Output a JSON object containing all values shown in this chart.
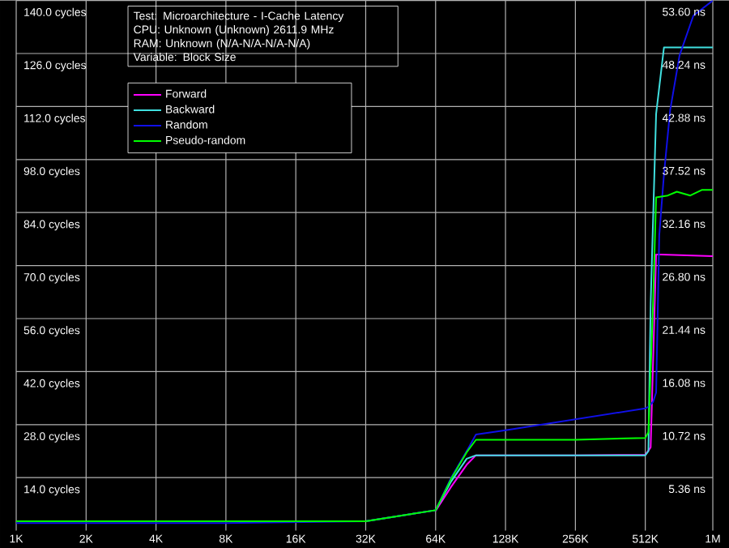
{
  "chart_data": {
    "type": "line",
    "annotations": [
      "Test: Microarchitecture - I-Cache Latency",
      "CPU: Unknown (Unknown) 2611.9 MHz",
      "RAM: Unknown (N/A-N/A-N/A-N/A)",
      "Variable: Block Size"
    ],
    "series": [
      {
        "name": "Forward",
        "color": "#ff00ff",
        "x": [
          64000,
          74700,
          87100,
          95500,
          128000,
          256000,
          512000,
          540000,
          570000,
          600000,
          1000000
        ],
        "values": [
          5.2,
          11.6,
          17.4,
          19.9,
          19.9,
          19.9,
          20,
          22,
          72.9,
          72.9,
          72.5
        ]
      },
      {
        "name": "Backward",
        "color": "#40e0e0",
        "x": [
          1000,
          32000,
          64000,
          74700,
          87100,
          95500,
          128000,
          256000,
          512000,
          528000,
          540000,
          570000,
          616000,
          1000000
        ],
        "values": [
          2.5,
          2.5,
          5.4,
          13,
          19,
          19.9,
          19.9,
          19.9,
          19.9,
          21,
          60,
          110,
          127.6,
          127.6
        ]
      },
      {
        "name": "Random",
        "color": "#1010e8",
        "x": [
          1000,
          8000,
          32000,
          64000,
          74700,
          87100,
          95500,
          128000,
          256000,
          512000,
          528000,
          553000,
          570000,
          588000,
          616000,
          655000,
          719000,
          825000,
          1000000
        ],
        "values": [
          2,
          2,
          2.5,
          5.4,
          14,
          21,
          25.4,
          26.5,
          29.4,
          32.3,
          32.7,
          34,
          36.5,
          78,
          94,
          111,
          125.5,
          136,
          140
        ]
      },
      {
        "name": "Pseudo-random",
        "color": "#00ff00",
        "x": [
          1000,
          8000,
          32000,
          64000,
          74700,
          87100,
          95500,
          128000,
          256000,
          512000,
          528000,
          553000,
          570000,
          640000,
          700000,
          800000,
          900000,
          1000000
        ],
        "values": [
          2.5,
          2.5,
          2.5,
          5.4,
          13.7,
          20.7,
          24,
          24,
          24,
          24.5,
          26,
          60,
          88,
          88.5,
          89.5,
          88.5,
          90,
          90
        ]
      }
    ],
    "log": "x",
    "xlim": [
      1000,
      1000000
    ],
    "xticks": [
      {
        "value": 1000,
        "label": "1K"
      },
      {
        "value": 2000,
        "label": "2K"
      },
      {
        "value": 4000,
        "label": "4K"
      },
      {
        "value": 8000,
        "label": "8K"
      },
      {
        "value": 16000,
        "label": "16K"
      },
      {
        "value": 32000,
        "label": "32K"
      },
      {
        "value": 64000,
        "label": "64K"
      },
      {
        "value": 128000,
        "label": "128K"
      },
      {
        "value": 256000,
        "label": "256K"
      },
      {
        "value": 512000,
        "label": "512K"
      },
      {
        "value": 1000000,
        "label": "1M"
      }
    ],
    "ylim": [
      0,
      140
    ],
    "yticks": [
      {
        "value": 14,
        "label": "14.0 cycles"
      },
      {
        "value": 28,
        "label": "28.0 cycles"
      },
      {
        "value": 42,
        "label": "42.0 cycles"
      },
      {
        "value": 56,
        "label": "56.0 cycles"
      },
      {
        "value": 70,
        "label": "70.0 cycles"
      },
      {
        "value": 84,
        "label": "84.0 cycles"
      },
      {
        "value": 98,
        "label": "98.0 cycles"
      },
      {
        "value": 112,
        "label": "112.0 cycles"
      },
      {
        "value": 126,
        "label": "126.0 cycles"
      },
      {
        "value": 140,
        "label": "140.0 cycles"
      }
    ],
    "y2lim": [
      0,
      53.6
    ],
    "y2ticks": [
      {
        "value": 5.36,
        "label": "5.36 ns"
      },
      {
        "value": 10.72,
        "label": "10.72 ns"
      },
      {
        "value": 16.08,
        "label": "16.08 ns"
      },
      {
        "value": 21.44,
        "label": "21.44 ns"
      },
      {
        "value": 26.8,
        "label": "26.80 ns"
      },
      {
        "value": 32.16,
        "label": "32.16 ns"
      },
      {
        "value": 37.52,
        "label": "37.52 ns"
      },
      {
        "value": 42.88,
        "label": "42.88 ns"
      },
      {
        "value": 48.24,
        "label": "48.24 ns"
      },
      {
        "value": 53.6,
        "label": "53.60 ns"
      }
    ],
    "grid": true,
    "legend": "top left",
    "marker": "none",
    "line_style": "solid"
  }
}
